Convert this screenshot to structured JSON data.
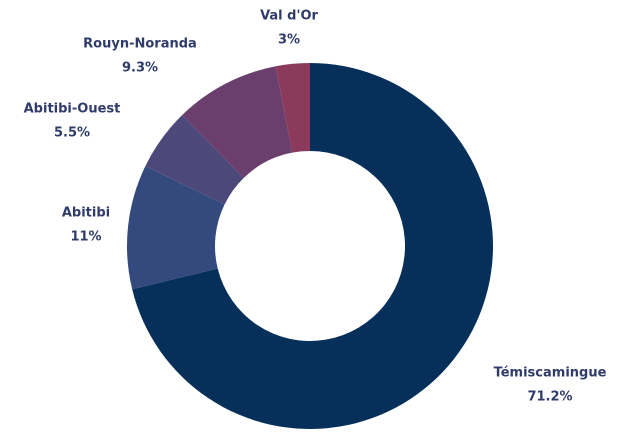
{
  "chart_data": {
    "type": "donut",
    "categories": [
      "Témiscamingue",
      "Abitibi",
      "Abitibi-Ouest",
      "Rouyn-Noranda",
      "Val d'Or"
    ],
    "values": [
      71.2,
      11,
      5.5,
      9.3,
      3
    ],
    "value_labels": [
      "71.2%",
      "11%",
      "5.5%",
      "9.3%",
      "3%"
    ],
    "colors": [
      "#06305a",
      "#34497e",
      "#4c4879",
      "#6b3f6d",
      "#8b3a5b"
    ]
  }
}
